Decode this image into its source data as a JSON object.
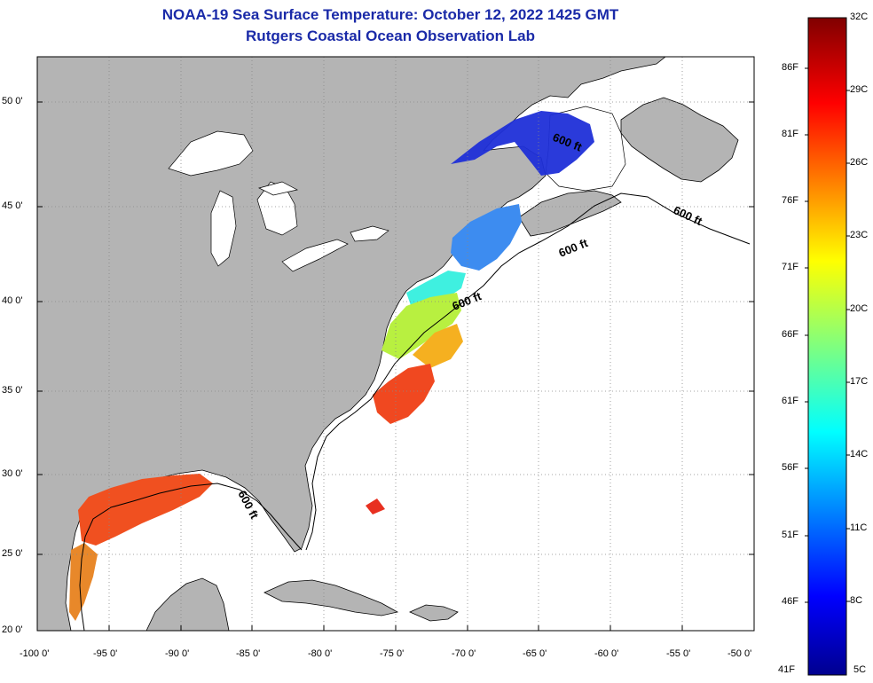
{
  "title": {
    "line1": "NOAA-19 Sea Surface Temperature:  October 12, 2022 1425 GMT",
    "line2": "Rutgers Coastal Ocean Observation Lab"
  },
  "map": {
    "lon_ticks": [
      "-100 0'",
      "-95 0'",
      "-90 0'",
      "-85 0'",
      "-80 0'",
      "-75 0'",
      "-70 0'",
      "-65 0'",
      "-60 0'",
      "-55 0'",
      "-50 0'"
    ],
    "lat_ticks": [
      "50 0'",
      "45 0'",
      "40 0'",
      "35 0'",
      "30 0'",
      "25 0'",
      "20 0'"
    ],
    "contour_label": "600 ft",
    "contour_labels": [
      "600 ft",
      "600 ft",
      "600 ft",
      "600 ft",
      "600 ft"
    ],
    "land_color": "#b4b4b4",
    "ocean_color": "#ffffff",
    "grid": "dotted"
  },
  "colorbar": {
    "celsius": [
      "32C",
      "29C",
      "26C",
      "23C",
      "20C",
      "17C",
      "14C",
      "11C",
      "8C",
      "5C"
    ],
    "fahrenheit": [
      "86F",
      "81F",
      "76F",
      "71F",
      "66F",
      "61F",
      "56F",
      "51F",
      "46F",
      "41F"
    ],
    "colormap": "jet",
    "range_c": [
      5,
      32
    ]
  }
}
